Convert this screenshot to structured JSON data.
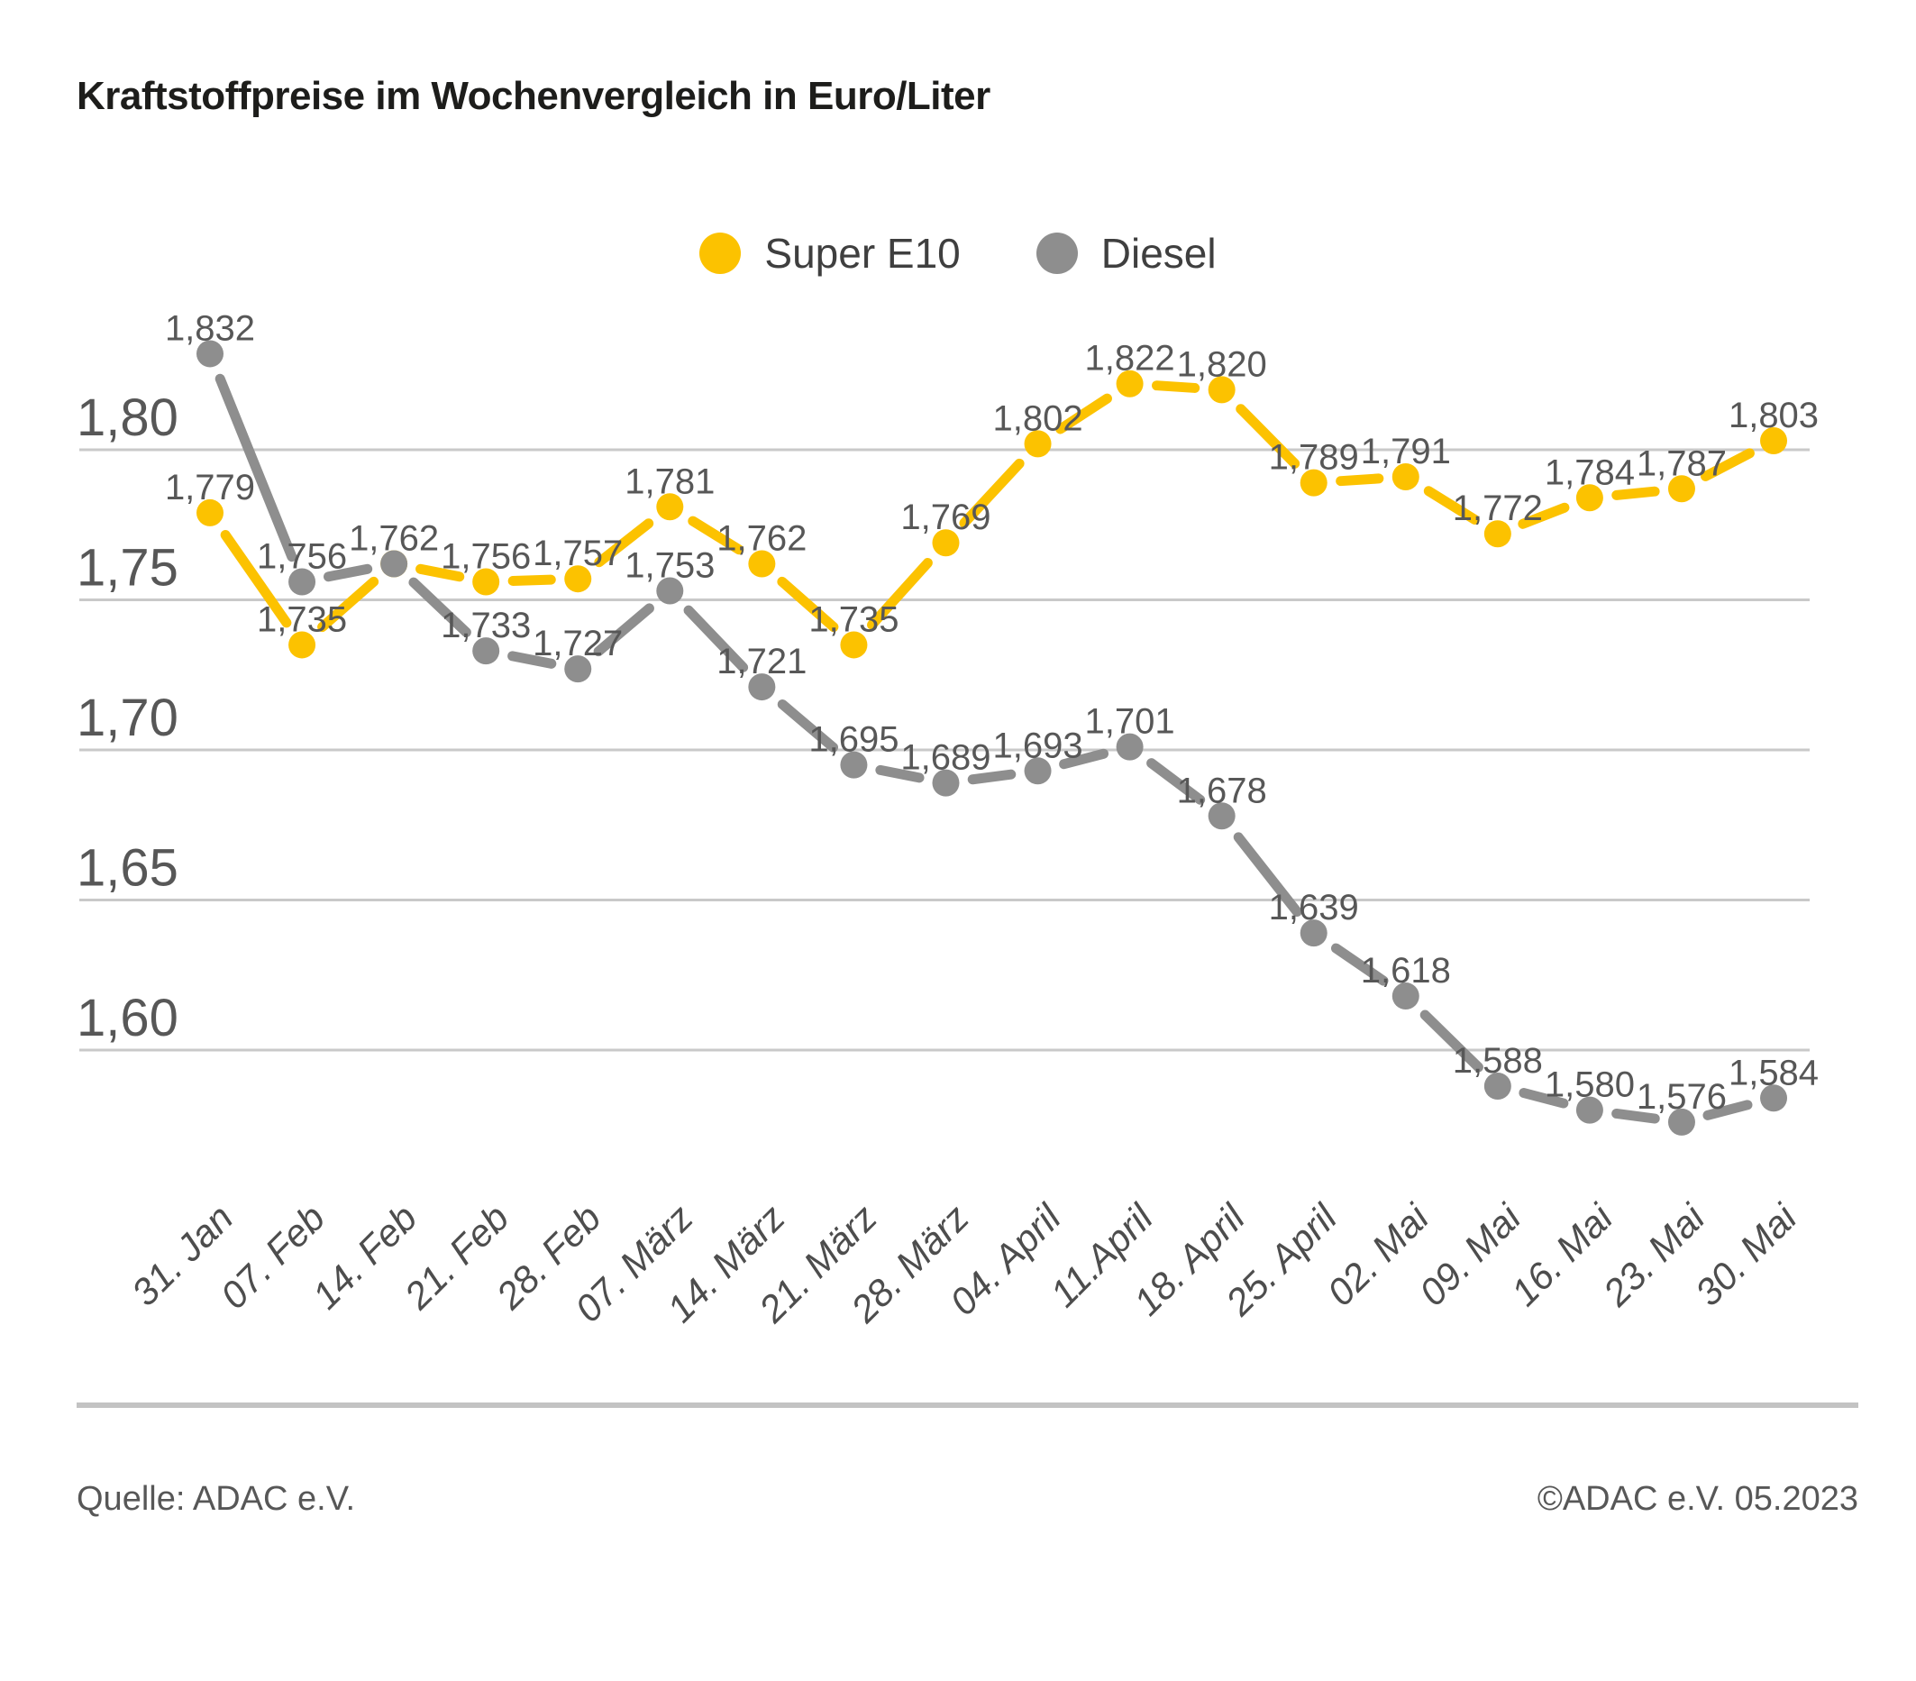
{
  "title": "Kraftstoffpreise im Wochenvergleich in Euro/Liter",
  "legend": {
    "items": [
      {
        "label": "Super E10",
        "color": "#fcc200"
      },
      {
        "label": "Diesel",
        "color": "#8e8e8e"
      }
    ]
  },
  "footer": {
    "source": "Quelle: ADAC e.V.",
    "copyright": "©ADAC e.V. 05.2023"
  },
  "chart_data": {
    "type": "line",
    "unit": "Euro/Liter",
    "grid": "horizontal",
    "legend_position": "top-center",
    "categories": [
      "31. Jan",
      "07. Feb",
      "14. Feb",
      "21. Feb",
      "28. Feb",
      "07. März",
      "14. März",
      "21. März",
      "28. März",
      "04. April",
      "11.April",
      "18. April",
      "25. April",
      "02. Mai",
      "09. Mai",
      "16. Mai",
      "23. Mai",
      "30. Mai"
    ],
    "yticks": [
      {
        "value": 1.8,
        "label": "1,80"
      },
      {
        "value": 1.75,
        "label": "1,75"
      },
      {
        "value": 1.7,
        "label": "1,70"
      },
      {
        "value": 1.65,
        "label": "1,65"
      },
      {
        "value": 1.6,
        "label": "1,60"
      }
    ],
    "ylim": [
      1.55,
      1.85
    ],
    "series": [
      {
        "name": "Super E10",
        "color": "#fcc200",
        "values": [
          1.779,
          1.735,
          1.762,
          1.756,
          1.757,
          1.781,
          1.762,
          1.735,
          1.769,
          1.802,
          1.822,
          1.82,
          1.789,
          1.791,
          1.772,
          1.784,
          1.787,
          1.803
        ],
        "labels": [
          "1,779",
          "1,735",
          "",
          "1,756",
          "1,757",
          "1,781",
          "1,762",
          "1,735",
          "1,769",
          "1,802",
          "1,822",
          "1,820",
          "1,789",
          "1,791",
          "1,772",
          "1,784",
          "1,787",
          "1,803"
        ]
      },
      {
        "name": "Diesel",
        "color": "#8e8e8e",
        "values": [
          1.832,
          1.756,
          1.762,
          1.733,
          1.727,
          1.753,
          1.721,
          1.695,
          1.689,
          1.693,
          1.701,
          1.678,
          1.639,
          1.618,
          1.588,
          1.58,
          1.576,
          1.584
        ],
        "labels": [
          "1,832",
          "1,756",
          "1,762",
          "1,733",
          "1,727",
          "1,753",
          "1,721",
          "1,695",
          "1,689",
          "1,693",
          "1,701",
          "1,678",
          "1,639",
          "1,618",
          "1,588",
          "1,580",
          "1,576",
          "1,584"
        ]
      }
    ]
  }
}
